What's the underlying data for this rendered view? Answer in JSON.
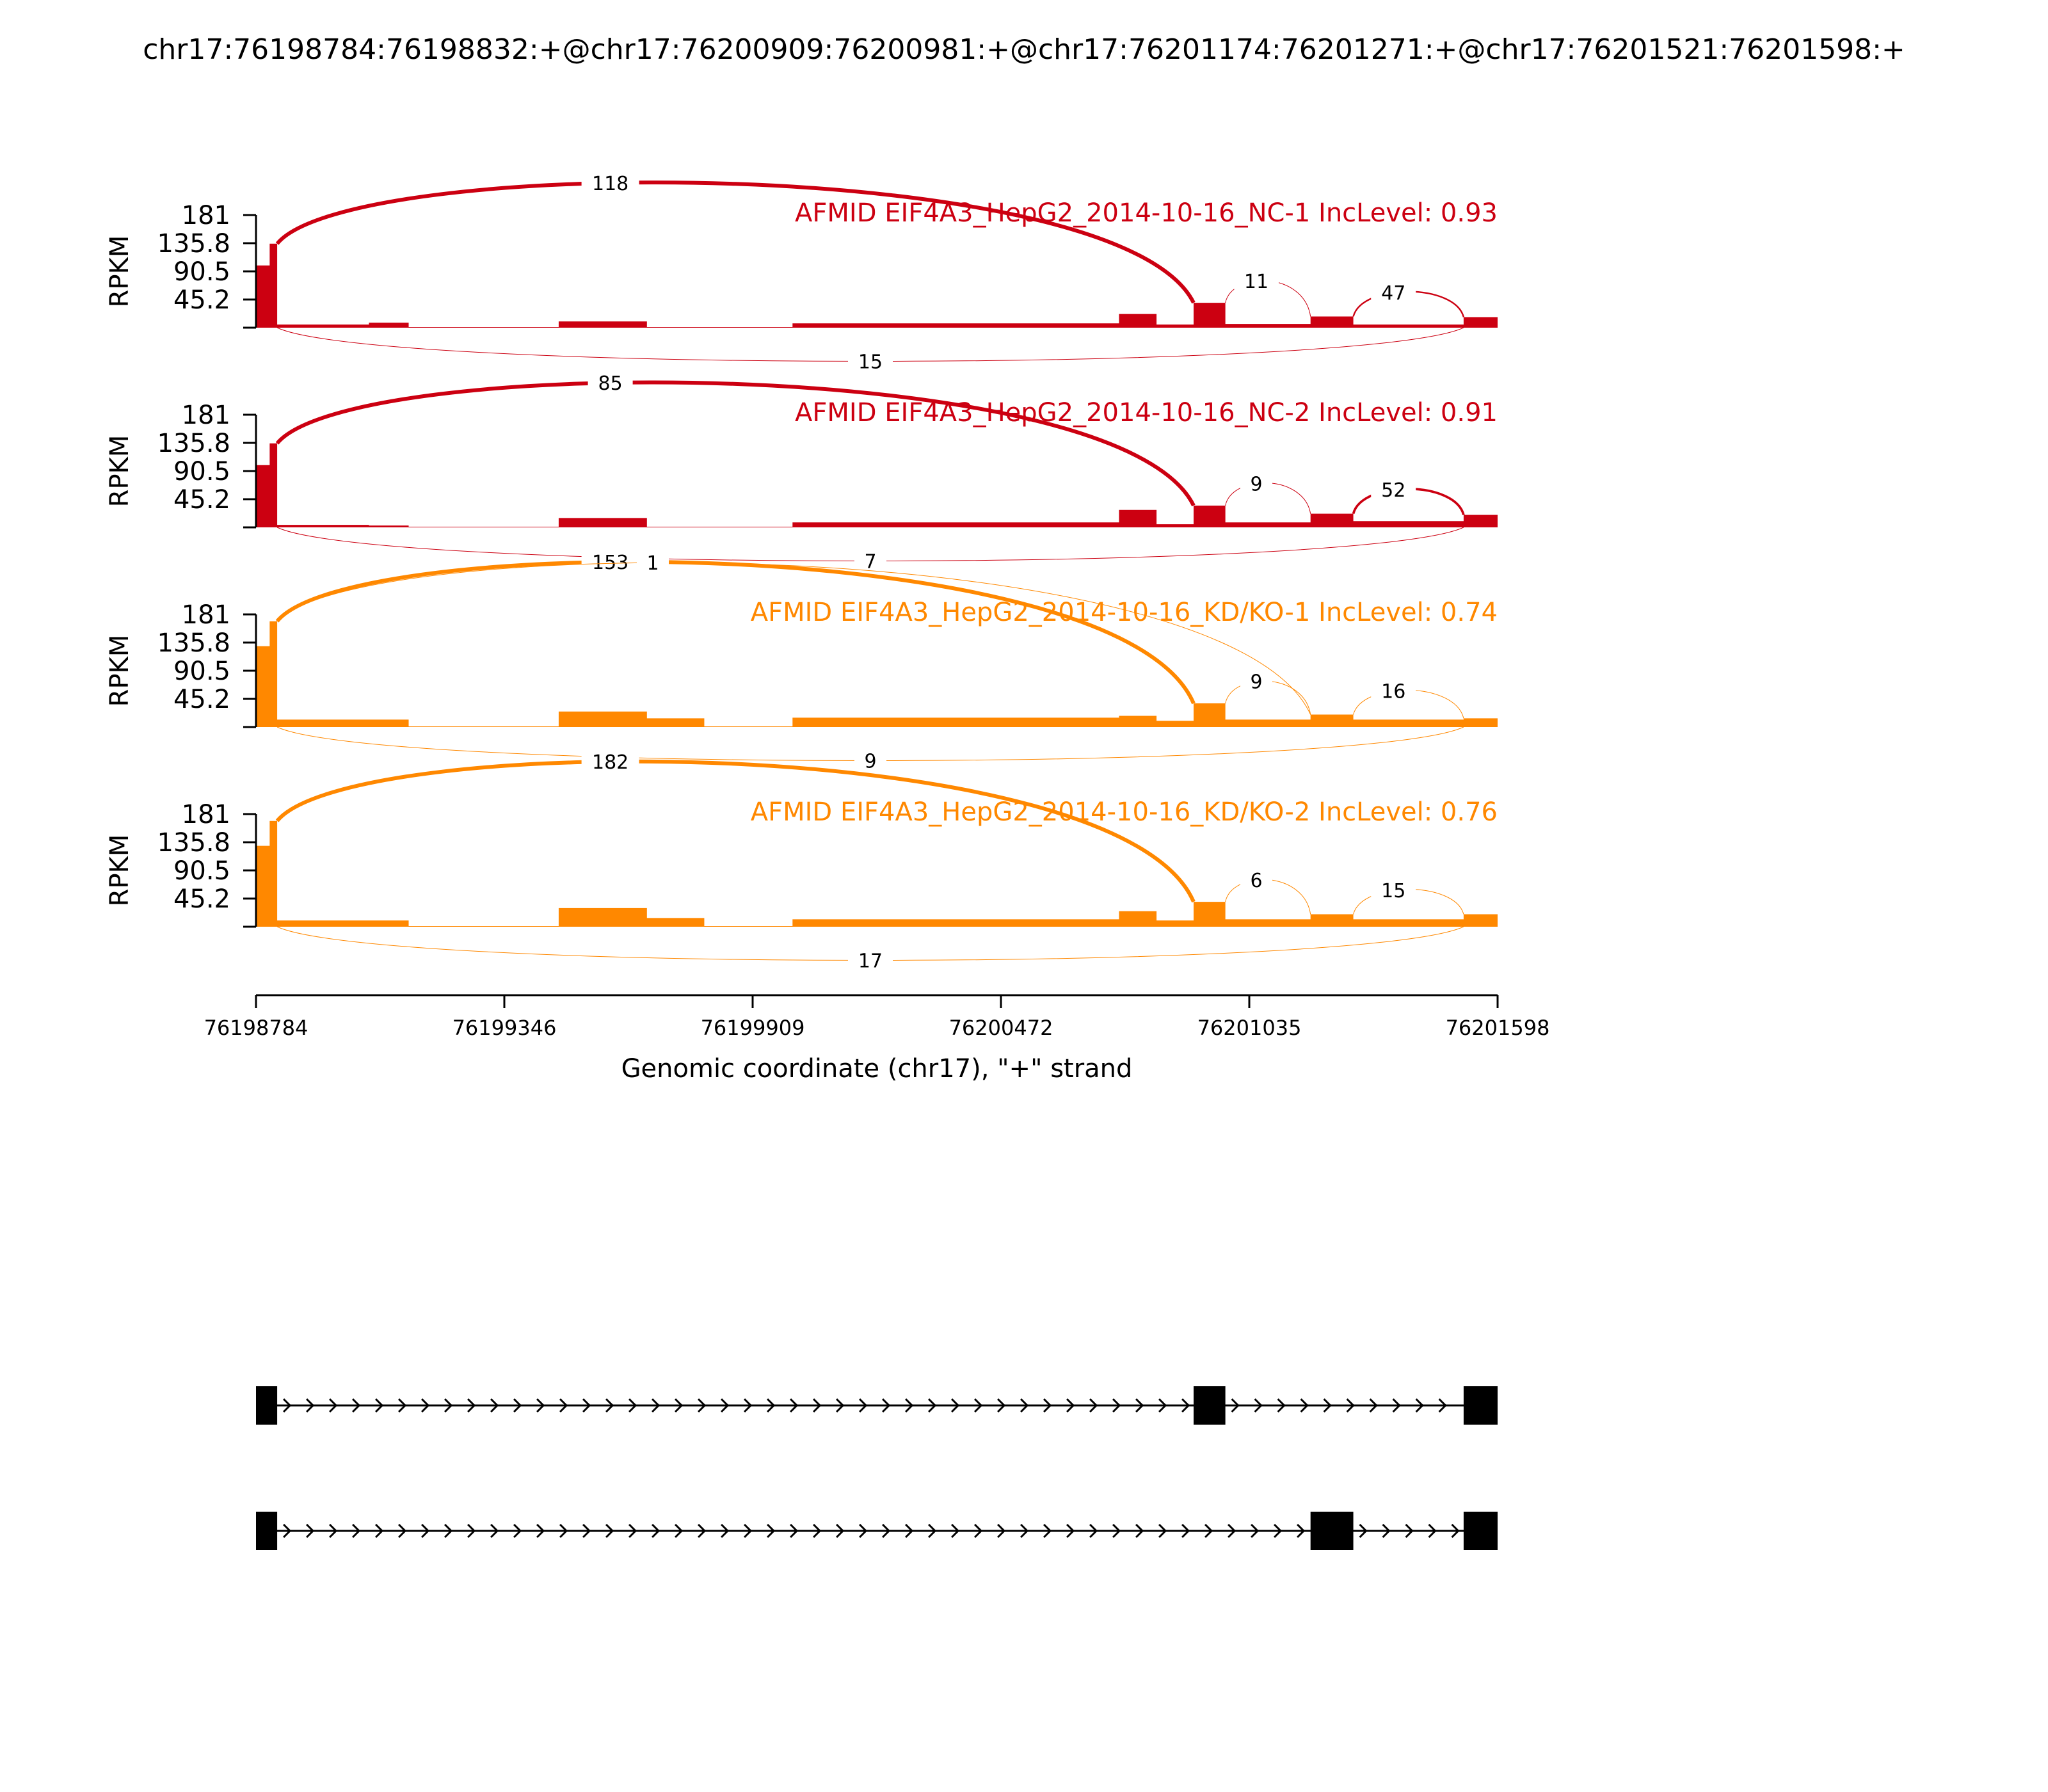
{
  "title": "chr17:76198784:76198832:+@chr17:76200909:76200981:+@chr17:76201174:76201271:+@chr17:76201521:76201598:+",
  "chart_data": {
    "type": "area",
    "plot_kind": "sashimi",
    "xlabel": "Genomic coordinate (chr17), \"+\" strand",
    "ylabel": "RPKM",
    "xlim": [
      76198784,
      76201598
    ],
    "x_ticks": [
      "76198784",
      "76199346",
      "76199909",
      "76200472",
      "76201035",
      "76201598"
    ],
    "y_ticks": [
      "181",
      "135.8",
      "90.5",
      "45.2"
    ],
    "ylim": [
      0,
      181
    ],
    "exons": [
      {
        "start": 76198784,
        "end": 76198832
      },
      {
        "start": 76200909,
        "end": 76200981
      },
      {
        "start": 76201174,
        "end": 76201271
      },
      {
        "start": 76201521,
        "end": 76201598
      }
    ],
    "isoforms": [
      {
        "exons": [
          [
            76198784,
            76198832
          ],
          [
            76200909,
            76200981
          ],
          [
            76201521,
            76201598
          ]
        ]
      },
      {
        "exons": [
          [
            76198784,
            76198832
          ],
          [
            76201174,
            76201271
          ],
          [
            76201521,
            76201598
          ]
        ]
      }
    ],
    "panels": [
      {
        "title": "AFMID EIF4A3_HepG2_2014-10-16_NC-1 IncLevel: 0.93",
        "color": "#cc0011",
        "coverage": [
          {
            "start": 76198784,
            "end": 76198790,
            "value": 100
          },
          {
            "start": 76198790,
            "end": 76198815,
            "value": 100
          },
          {
            "start": 76198815,
            "end": 76198832,
            "value": 135
          },
          {
            "start": 76198832,
            "end": 76199040,
            "value": 5
          },
          {
            "start": 76199040,
            "end": 76199130,
            "value": 8
          },
          {
            "start": 76199130,
            "end": 76199470,
            "value": 1
          },
          {
            "start": 76199470,
            "end": 76199670,
            "value": 10
          },
          {
            "start": 76199670,
            "end": 76200000,
            "value": 1
          },
          {
            "start": 76200000,
            "end": 76200740,
            "value": 7
          },
          {
            "start": 76200740,
            "end": 76200825,
            "value": 22
          },
          {
            "start": 76200825,
            "end": 76200909,
            "value": 5
          },
          {
            "start": 76200909,
            "end": 76200981,
            "value": 40
          },
          {
            "start": 76200981,
            "end": 76201174,
            "value": 6
          },
          {
            "start": 76201174,
            "end": 76201271,
            "value": 18
          },
          {
            "start": 76201271,
            "end": 76201521,
            "value": 5
          },
          {
            "start": 76201521,
            "end": 76201598,
            "value": 17
          }
        ],
        "junctions": [
          {
            "from": 76198832,
            "to": 76200909,
            "count": "118",
            "side": "above"
          },
          {
            "from": 76200981,
            "to": 76201174,
            "count": "11",
            "side": "above"
          },
          {
            "from": 76201271,
            "to": 76201521,
            "count": "47",
            "side": "above"
          },
          {
            "from": 76198832,
            "to": 76201521,
            "count": "15",
            "side": "below"
          }
        ]
      },
      {
        "title": "AFMID EIF4A3_HepG2_2014-10-16_NC-2 IncLevel: 0.91",
        "color": "#cc0011",
        "coverage": [
          {
            "start": 76198784,
            "end": 76198790,
            "value": 100
          },
          {
            "start": 76198790,
            "end": 76198815,
            "value": 100
          },
          {
            "start": 76198815,
            "end": 76198832,
            "value": 135
          },
          {
            "start": 76198832,
            "end": 76199040,
            "value": 4
          },
          {
            "start": 76199040,
            "end": 76199130,
            "value": 3
          },
          {
            "start": 76199130,
            "end": 76199470,
            "value": 1
          },
          {
            "start": 76199470,
            "end": 76199670,
            "value": 15
          },
          {
            "start": 76199670,
            "end": 76200000,
            "value": 1
          },
          {
            "start": 76200000,
            "end": 76200740,
            "value": 8
          },
          {
            "start": 76200740,
            "end": 76200825,
            "value": 28
          },
          {
            "start": 76200825,
            "end": 76200909,
            "value": 5
          },
          {
            "start": 76200909,
            "end": 76200981,
            "value": 35
          },
          {
            "start": 76200981,
            "end": 76201174,
            "value": 8
          },
          {
            "start": 76201174,
            "end": 76201271,
            "value": 22
          },
          {
            "start": 76201271,
            "end": 76201521,
            "value": 10
          },
          {
            "start": 76201521,
            "end": 76201598,
            "value": 20
          }
        ],
        "junctions": [
          {
            "from": 76198832,
            "to": 76200909,
            "count": "85",
            "side": "above"
          },
          {
            "from": 76200981,
            "to": 76201174,
            "count": "9",
            "side": "above"
          },
          {
            "from": 76201271,
            "to": 76201521,
            "count": "52",
            "side": "above"
          },
          {
            "from": 76198832,
            "to": 76201521,
            "count": "7",
            "side": "below"
          }
        ]
      },
      {
        "title": "AFMID EIF4A3_HepG2_2014-10-16_KD/KO-1 IncLevel: 0.74",
        "color": "#ff8800",
        "coverage": [
          {
            "start": 76198784,
            "end": 76198790,
            "value": 130
          },
          {
            "start": 76198790,
            "end": 76198815,
            "value": 130
          },
          {
            "start": 76198815,
            "end": 76198832,
            "value": 170
          },
          {
            "start": 76198832,
            "end": 76199040,
            "value": 12
          },
          {
            "start": 76199040,
            "end": 76199130,
            "value": 12
          },
          {
            "start": 76199130,
            "end": 76199470,
            "value": 1
          },
          {
            "start": 76199470,
            "end": 76199670,
            "value": 25
          },
          {
            "start": 76199670,
            "end": 76199800,
            "value": 14
          },
          {
            "start": 76199800,
            "end": 76200000,
            "value": 1
          },
          {
            "start": 76200000,
            "end": 76200740,
            "value": 15
          },
          {
            "start": 76200740,
            "end": 76200825,
            "value": 18
          },
          {
            "start": 76200825,
            "end": 76200909,
            "value": 10
          },
          {
            "start": 76200909,
            "end": 76200981,
            "value": 38
          },
          {
            "start": 76200981,
            "end": 76201174,
            "value": 12
          },
          {
            "start": 76201174,
            "end": 76201271,
            "value": 20
          },
          {
            "start": 76201271,
            "end": 76201521,
            "value": 12
          },
          {
            "start": 76201521,
            "end": 76201598,
            "value": 14
          }
        ],
        "junctions": [
          {
            "from": 76198832,
            "to": 76200909,
            "count": "153",
            "side": "above"
          },
          {
            "from": 76198832,
            "to": 76201174,
            "count": "1",
            "side": "above"
          },
          {
            "from": 76200981,
            "to": 76201174,
            "count": "9",
            "side": "above"
          },
          {
            "from": 76201271,
            "to": 76201521,
            "count": "16",
            "side": "above"
          },
          {
            "from": 76198832,
            "to": 76201521,
            "count": "9",
            "side": "below"
          }
        ]
      },
      {
        "title": "AFMID EIF4A3_HepG2_2014-10-16_KD/KO-2 IncLevel: 0.76",
        "color": "#ff8800",
        "coverage": [
          {
            "start": 76198784,
            "end": 76198790,
            "value": 130
          },
          {
            "start": 76198790,
            "end": 76198815,
            "value": 130
          },
          {
            "start": 76198815,
            "end": 76198832,
            "value": 170
          },
          {
            "start": 76198832,
            "end": 76199040,
            "value": 10
          },
          {
            "start": 76199040,
            "end": 76199130,
            "value": 10
          },
          {
            "start": 76199130,
            "end": 76199470,
            "value": 1
          },
          {
            "start": 76199470,
            "end": 76199670,
            "value": 30
          },
          {
            "start": 76199670,
            "end": 76199800,
            "value": 14
          },
          {
            "start": 76199800,
            "end": 76200000,
            "value": 1
          },
          {
            "start": 76200000,
            "end": 76200740,
            "value": 12
          },
          {
            "start": 76200740,
            "end": 76200825,
            "value": 25
          },
          {
            "start": 76200825,
            "end": 76200909,
            "value": 10
          },
          {
            "start": 76200909,
            "end": 76200981,
            "value": 40
          },
          {
            "start": 76200981,
            "end": 76201174,
            "value": 12
          },
          {
            "start": 76201174,
            "end": 76201271,
            "value": 20
          },
          {
            "start": 76201271,
            "end": 76201521,
            "value": 12
          },
          {
            "start": 76201521,
            "end": 76201598,
            "value": 20
          }
        ],
        "junctions": [
          {
            "from": 76198832,
            "to": 76200909,
            "count": "182",
            "side": "above"
          },
          {
            "from": 76200981,
            "to": 76201174,
            "count": "6",
            "side": "above"
          },
          {
            "from": 76201271,
            "to": 76201521,
            "count": "15",
            "side": "above"
          },
          {
            "from": 76198832,
            "to": 76201521,
            "count": "17",
            "side": "below"
          }
        ]
      }
    ]
  }
}
